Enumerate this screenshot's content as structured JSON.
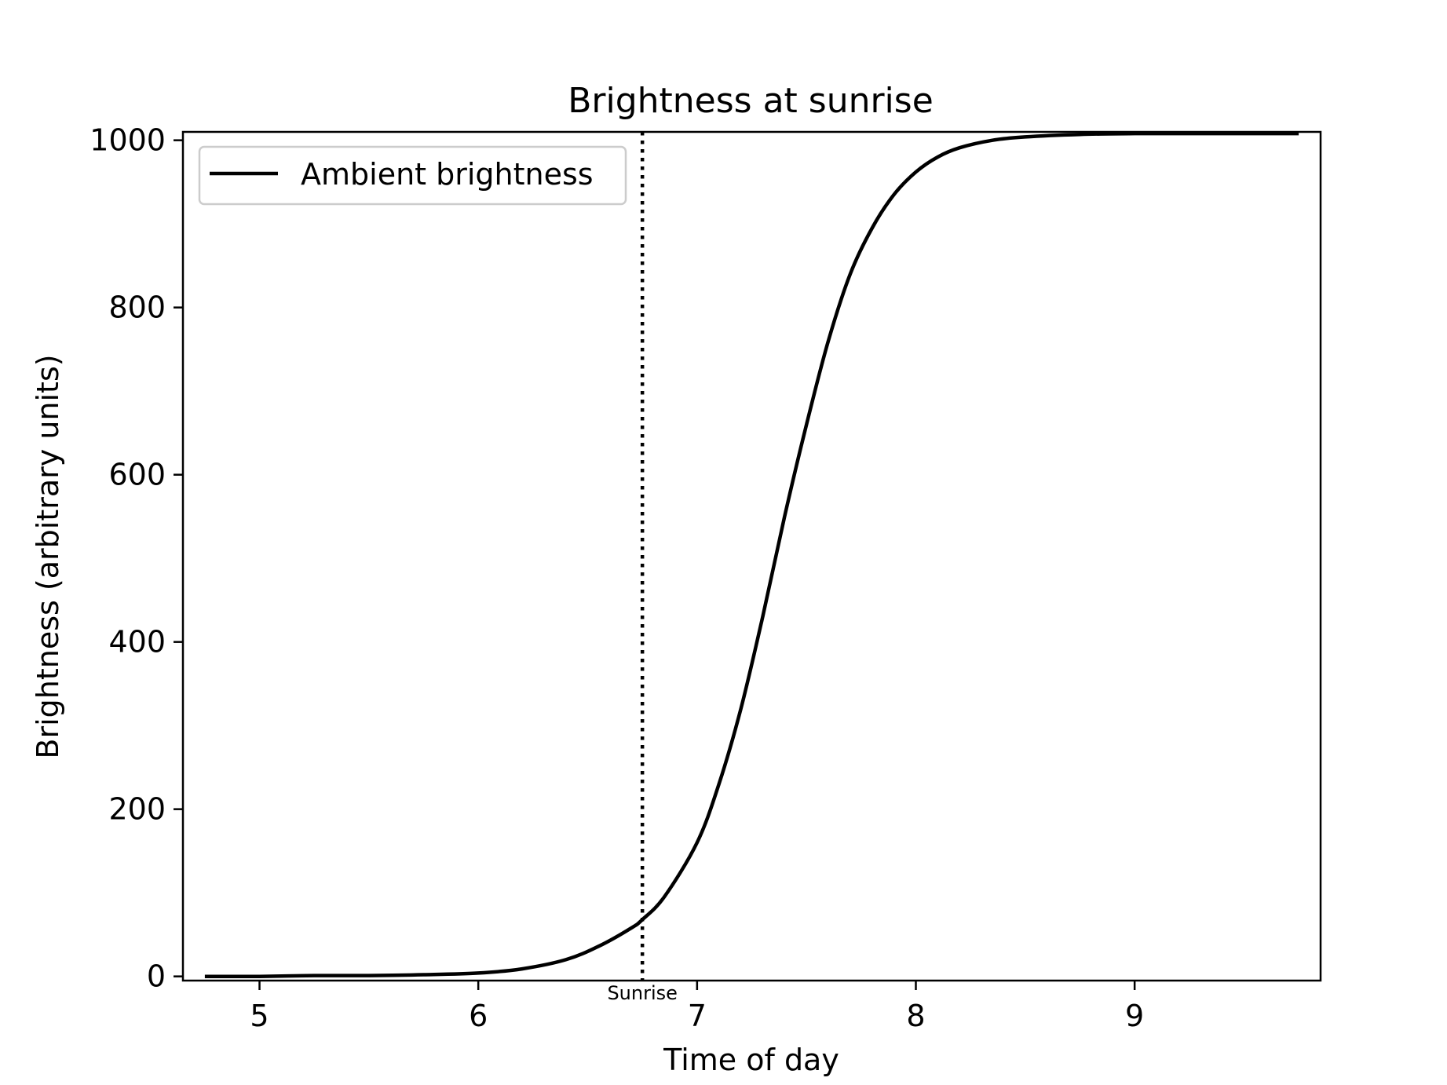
{
  "chart_data": {
    "type": "line",
    "title": "Brightness at sunrise",
    "xlabel": "Time of day",
    "ylabel": "Brightness (arbitrary units)",
    "xlim": [
      4.65,
      9.85
    ],
    "ylim": [
      -5,
      1010
    ],
    "xticks": [
      5,
      6,
      7,
      8,
      9
    ],
    "yticks": [
      0,
      200,
      400,
      600,
      800,
      1000
    ],
    "grid": false,
    "legend_position": "upper left",
    "series": [
      {
        "name": "Ambient brightness",
        "color": "#000000",
        "style": "solid",
        "x": [
          4.75,
          5.0,
          5.25,
          5.5,
          5.75,
          6.0,
          6.2,
          6.4,
          6.55,
          6.7,
          6.75,
          6.85,
          7.0,
          7.1,
          7.2,
          7.3,
          7.4,
          7.5,
          7.6,
          7.7,
          7.8,
          7.9,
          8.0,
          8.1,
          8.2,
          8.35,
          8.5,
          8.75,
          9.0,
          9.25,
          9.5,
          9.75
        ],
        "y": [
          0,
          0,
          1,
          1,
          2,
          4,
          9,
          20,
          36,
          58,
          68,
          95,
          160,
          230,
          320,
          430,
          550,
          660,
          760,
          840,
          895,
          935,
          962,
          980,
          991,
          1000,
          1004,
          1007,
          1008,
          1008,
          1008,
          1008
        ]
      }
    ],
    "annotations": [
      {
        "type": "vline",
        "x": 6.75,
        "style": "dotted",
        "color": "#000000",
        "label": "Sunrise"
      }
    ]
  }
}
